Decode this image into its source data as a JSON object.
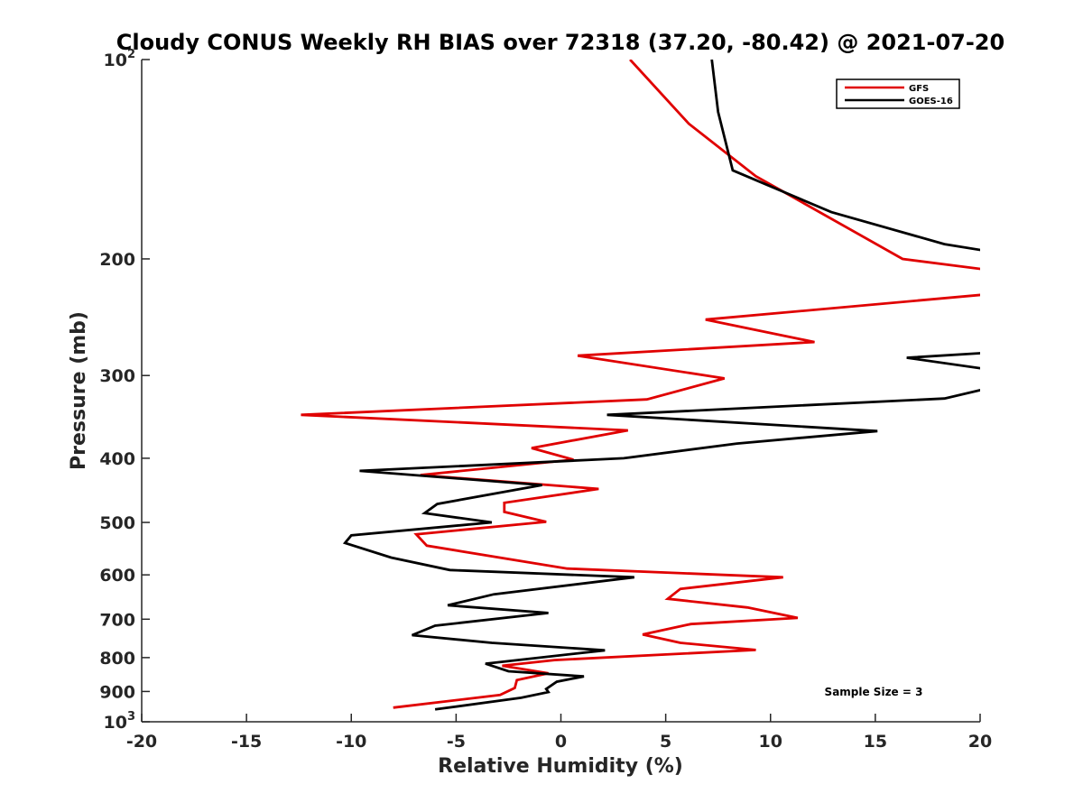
{
  "chart_data": {
    "type": "line",
    "title": "Cloudy CONUS Weekly RH BIAS over 72318 (37.20, -80.42) @ 2021-07-20",
    "xlabel": "Relative Humidity (%)",
    "ylabel": "Pressure (mb)",
    "xlim": [
      -20,
      20
    ],
    "ylim": [
      100,
      1000
    ],
    "yscale": "log",
    "y_reversed": true,
    "grid": false,
    "legend_position": "top-right",
    "x_ticks": [
      -20,
      -15,
      -10,
      -5,
      0,
      5,
      10,
      15,
      20
    ],
    "x_tick_labels": [
      "-20",
      "-15",
      "-10",
      "-5",
      "0",
      "5",
      "10",
      "15",
      "20"
    ],
    "y_ticks": [
      100,
      200,
      300,
      400,
      500,
      600,
      700,
      800,
      900,
      1000
    ],
    "y_tick_labels": [
      {
        "base": "10",
        "exp": "2"
      },
      {
        "base": "200",
        "exp": ""
      },
      {
        "base": "300",
        "exp": ""
      },
      {
        "base": "400",
        "exp": ""
      },
      {
        "base": "500",
        "exp": ""
      },
      {
        "base": "600",
        "exp": ""
      },
      {
        "base": "700",
        "exp": ""
      },
      {
        "base": "800",
        "exp": ""
      },
      {
        "base": "900",
        "exp": ""
      },
      {
        "base": "10",
        "exp": "3"
      }
    ],
    "annotation": "Sample Size = 3",
    "series": [
      {
        "name": "GFS",
        "color": "#e00000",
        "points": [
          [
            3.3,
            100
          ],
          [
            6.1,
            125
          ],
          [
            9.3,
            150
          ],
          [
            16.3,
            200
          ],
          [
            20.5,
            208
          ],
          [
            20.5,
            226
          ],
          [
            6.9,
            247
          ],
          [
            12.1,
            267
          ],
          [
            0.8,
            280
          ],
          [
            7.8,
            303
          ],
          [
            4.1,
            326
          ],
          [
            -12.4,
            344
          ],
          [
            3.2,
            363
          ],
          [
            -1.4,
            386
          ],
          [
            0.6,
            402
          ],
          [
            -6.7,
            424
          ],
          [
            1.8,
            445
          ],
          [
            -2.7,
            467
          ],
          [
            -2.7,
            482
          ],
          [
            -0.7,
            499
          ],
          [
            -6.9,
            521
          ],
          [
            -6.4,
            542
          ],
          [
            0.3,
            587
          ],
          [
            10.6,
            605
          ],
          [
            5.7,
            630
          ],
          [
            5.1,
            652
          ],
          [
            8.9,
            672
          ],
          [
            11.3,
            697
          ],
          [
            6.2,
            712
          ],
          [
            3.9,
            738
          ],
          [
            5.7,
            760
          ],
          [
            9.3,
            779
          ],
          [
            -0.3,
            807
          ],
          [
            -2.8,
            823
          ],
          [
            -0.6,
            845
          ],
          [
            -2.1,
            865
          ],
          [
            -2.2,
            889
          ],
          [
            -2.9,
            911
          ],
          [
            -8.0,
            952
          ]
        ]
      },
      {
        "name": "GOES-16",
        "color": "#000000",
        "points": [
          [
            7.2,
            100
          ],
          [
            7.5,
            120
          ],
          [
            8.2,
            147
          ],
          [
            12.9,
            170
          ],
          [
            18.3,
            190
          ],
          [
            20.5,
            195
          ],
          [
            20.5,
            277
          ],
          [
            16.5,
            282
          ],
          [
            20.5,
            294
          ],
          [
            20.5,
            313
          ],
          [
            18.3,
            325
          ],
          [
            2.2,
            344
          ],
          [
            15.1,
            364
          ],
          [
            8.4,
            380
          ],
          [
            3.0,
            400
          ],
          [
            -9.6,
            418
          ],
          [
            -0.9,
            439
          ],
          [
            -5.9,
            469
          ],
          [
            -6.5,
            484
          ],
          [
            -3.3,
            500
          ],
          [
            -10.0,
            523
          ],
          [
            -10.3,
            537
          ],
          [
            -8.1,
            565
          ],
          [
            -5.3,
            590
          ],
          [
            3.5,
            605
          ],
          [
            -3.2,
            642
          ],
          [
            -5.4,
            667
          ],
          [
            -0.6,
            685
          ],
          [
            -6.0,
            716
          ],
          [
            -7.1,
            740
          ],
          [
            -3.3,
            760
          ],
          [
            2.1,
            780
          ],
          [
            -3.6,
            817
          ],
          [
            -2.5,
            839
          ],
          [
            1.1,
            854
          ],
          [
            -0.2,
            870
          ],
          [
            -0.7,
            892
          ],
          [
            -0.6,
            902
          ],
          [
            -1.9,
            920
          ],
          [
            -6.0,
            958
          ]
        ]
      }
    ]
  }
}
